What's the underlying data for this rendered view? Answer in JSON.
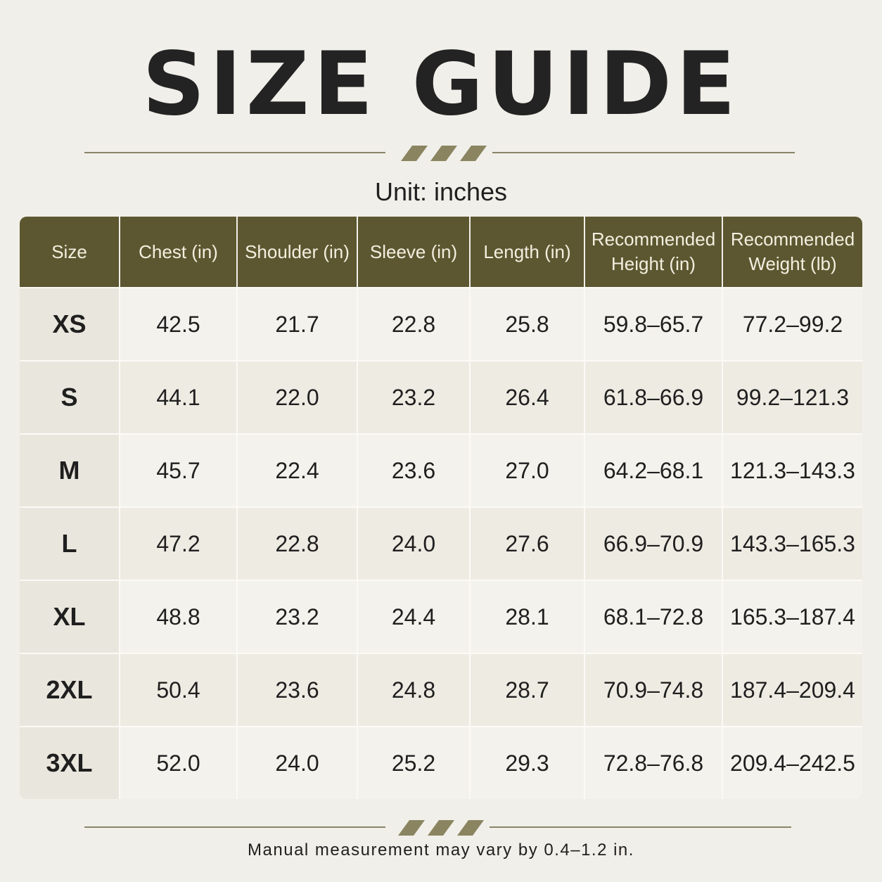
{
  "header": {
    "title": "SIZE GUIDE",
    "subtitle": "Unit: inches"
  },
  "table": {
    "columns": [
      "Size",
      "Chest (in)",
      "Shoulder (in)",
      "Sleeve (in)",
      "Length (in)",
      "Recommended Height (in)",
      "Recommended Weight (lb)"
    ],
    "rows": [
      [
        "XS",
        "42.5",
        "21.7",
        "22.8",
        "25.8",
        "59.8–65.7",
        "77.2–99.2"
      ],
      [
        "S",
        "44.1",
        "22.0",
        "23.2",
        "26.4",
        "61.8–66.9",
        "99.2–121.3"
      ],
      [
        "M",
        "45.7",
        "22.4",
        "23.6",
        "27.0",
        "64.2–68.1",
        "121.3–143.3"
      ],
      [
        "L",
        "47.2",
        "22.8",
        "24.0",
        "27.6",
        "66.9–70.9",
        "143.3–165.3"
      ],
      [
        "XL",
        "48.8",
        "23.2",
        "24.4",
        "28.1",
        "68.1–72.8",
        "165.3–187.4"
      ],
      [
        "2XL",
        "50.4",
        "23.6",
        "24.8",
        "28.7",
        "70.9–74.8",
        "187.4–209.4"
      ],
      [
        "3XL",
        "52.0",
        "24.0",
        "25.2",
        "29.3",
        "72.8–76.8",
        "209.4–242.5"
      ]
    ]
  },
  "footer": {
    "note": "Manual measurement may vary by 0.4–1.2 in."
  }
}
